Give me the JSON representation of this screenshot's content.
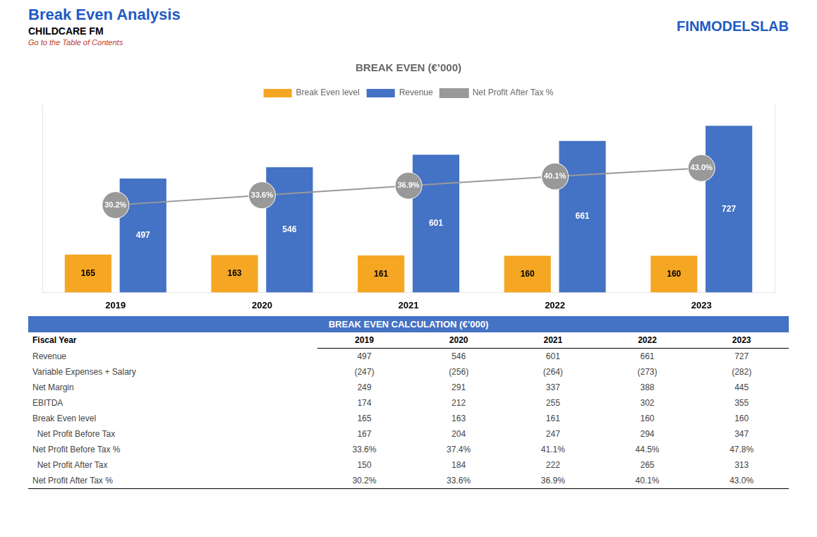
{
  "chart_data": {
    "type": "bar",
    "title": "Break Even Analysis",
    "subtitle": "CHILDCARE FM",
    "annotations": [
      "Go to the Table of Contents",
      "FINMODELSLAB",
      "BREAK EVEN (€’000)"
    ],
    "categories": [
      "2019",
      "2020",
      "2021",
      "2022",
      "2023"
    ],
    "series": [
      {
        "name": "Break Even level",
        "color": "#F5A623",
        "values": [
          165,
          163,
          161,
          160,
          160
        ]
      },
      {
        "name": "Revenue",
        "color": "#4472C4",
        "values": [
          497,
          546,
          601,
          661,
          727
        ]
      },
      {
        "name": "Net Profit After Tax %",
        "type": "line",
        "axis": "y2",
        "color": "#999999",
        "marker": "circle",
        "values": [
          30.2,
          33.6,
          36.9,
          40.1,
          43.0
        ],
        "value_labels": [
          "30.2%",
          "33.6%",
          "36.9%",
          "40.1%",
          "43.0%"
        ]
      }
    ],
    "ylim": [
      0,
      820
    ],
    "y2lim": [
      0,
      65
    ],
    "grid": false,
    "legend": "top",
    "data_labels": true,
    "tick_labels": "x",
    "table": {
      "title": "BREAK EVEN CALCULATION (€’000)",
      "columns": [
        "Fiscal Year",
        "2019",
        "2020",
        "2021",
        "2022",
        "2023"
      ],
      "rows": [
        {
          "label": "Revenue",
          "values": [
            "497",
            "546",
            "601",
            "661",
            "727"
          ]
        },
        {
          "label": "Variable Expenses + Salary",
          "values": [
            "(247)",
            "(256)",
            "(264)",
            "(273)",
            "(282)"
          ]
        },
        {
          "label": "Net Margin",
          "values": [
            "249",
            "291",
            "337",
            "388",
            "445"
          ]
        },
        {
          "label": "EBITDA",
          "values": [
            "174",
            "212",
            "255",
            "302",
            "355"
          ]
        },
        {
          "label": "Break Even level",
          "values": [
            "165",
            "163",
            "161",
            "160",
            "160"
          ]
        },
        {
          "label": "  Net Profit Before Tax",
          "values": [
            "167",
            "204",
            "247",
            "294",
            "347"
          ]
        },
        {
          "label": "Net Profit Before Tax %",
          "values": [
            "33.6%",
            "37.4%",
            "41.1%",
            "44.5%",
            "47.8%"
          ]
        },
        {
          "label": "  Net Profit After Tax",
          "values": [
            "150",
            "184",
            "222",
            "265",
            "313"
          ]
        },
        {
          "label": "Net Profit After Tax %",
          "values": [
            "30.2%",
            "33.6%",
            "36.9%",
            "40.1%",
            "43.0%"
          ]
        }
      ]
    }
  }
}
